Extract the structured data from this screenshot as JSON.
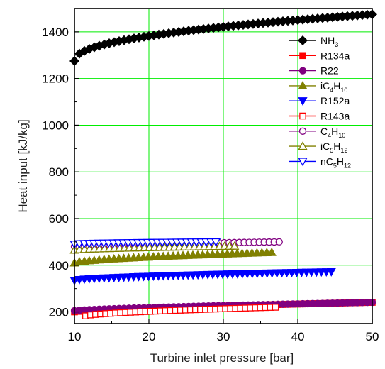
{
  "chart_data": {
    "type": "scatter",
    "xlabel": "Turbine inlet pressure [bar]",
    "ylabel": "Heat input [kJ/kg]",
    "xlim": [
      10,
      50
    ],
    "ylim": [
      150,
      1500
    ],
    "xticks": [
      10,
      20,
      30,
      40,
      50
    ],
    "yticks": [
      200,
      400,
      600,
      800,
      1000,
      1200,
      1400
    ],
    "grid": true,
    "grid_color": "#00ee00",
    "legend_position": "top-right",
    "series": [
      {
        "name": "NH",
        "sub": "3",
        "marker": "diamond",
        "filled": true,
        "color": "#000000",
        "x_start": 10,
        "x_end": 50,
        "y_start": 1275,
        "y_end": 1475,
        "shape": 0.45
      },
      {
        "name": "R134a",
        "sub": "",
        "marker": "square",
        "filled": true,
        "color": "#ff0000",
        "x_start": 10,
        "x_end": 50,
        "y_start": 200,
        "y_end": 241,
        "shape": 0.7
      },
      {
        "name": "R22",
        "sub": "",
        "marker": "circle",
        "filled": true,
        "color": "#800080",
        "x_start": 10,
        "x_end": 50,
        "y_start": 205,
        "y_end": 241,
        "shape": 0.7
      },
      {
        "name": "iC",
        "sub": "4",
        "name2": "H",
        "sub2": "10",
        "marker": "triangle-up",
        "filled": true,
        "color": "#808000",
        "x_start": 10,
        "x_end": 36.5,
        "y_start": 410,
        "y_end": 455,
        "shape": 0.6
      },
      {
        "name": "R152a",
        "sub": "",
        "marker": "triangle-down",
        "filled": true,
        "color": "#0000ff",
        "x_start": 10,
        "x_end": 44.5,
        "y_start": 335,
        "y_end": 372,
        "shape": 0.6
      },
      {
        "name": "R143a",
        "sub": "",
        "marker": "square",
        "filled": false,
        "color": "#ff0000",
        "x_start": 11.5,
        "x_end": 37,
        "y_start": 183,
        "y_end": 220,
        "shape": 0.6
      },
      {
        "name": "C",
        "sub": "4",
        "name2": "H",
        "sub2": "10",
        "marker": "circle",
        "filled": false,
        "color": "#800080",
        "x_start": 10,
        "x_end": 37.5,
        "y_start": 480,
        "y_end": 500,
        "shape": 0.6
      },
      {
        "name": "iC",
        "sub": "5",
        "name2": "H",
        "sub2": "12",
        "marker": "triangle-up",
        "filled": false,
        "color": "#808000",
        "x_start": 10,
        "x_end": 31.5,
        "y_start": 465,
        "y_end": 482,
        "shape": 0.6
      },
      {
        "name": "nC",
        "sub": "5",
        "name2": "H",
        "sub2": "12",
        "marker": "triangle-down",
        "filled": false,
        "color": "#0000ff",
        "x_start": 10,
        "x_end": 29,
        "y_start": 490,
        "y_end": 500,
        "shape": 0.5
      }
    ]
  }
}
